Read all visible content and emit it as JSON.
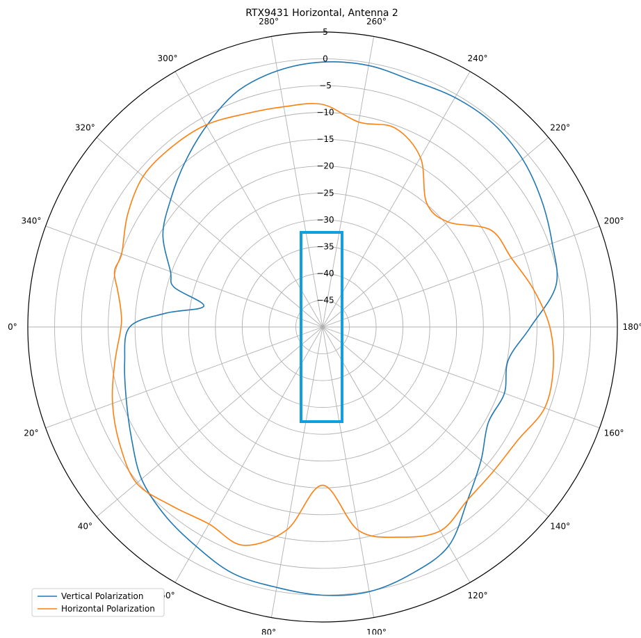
{
  "chart_data": {
    "type": "line",
    "subtype": "polar",
    "title": "RTX9431 Horizontal, Antenna 2",
    "theta_direction": "clockwise",
    "theta_zero": "left",
    "angle_ticks": [
      "0°",
      "20°",
      "40°",
      "60°",
      "80°",
      "100°",
      "120°",
      "140°",
      "160°",
      "180°",
      "200°",
      "220°",
      "240°",
      "260°",
      "280°",
      "300°",
      "320°",
      "340°"
    ],
    "angle_tick_values": [
      0,
      20,
      40,
      60,
      80,
      100,
      120,
      140,
      160,
      180,
      200,
      220,
      240,
      260,
      280,
      300,
      320,
      340
    ],
    "radial_ticks": [
      "5",
      "0",
      "−5",
      "−10",
      "−15",
      "−20",
      "−25",
      "−30",
      "−35",
      "−40",
      "−45"
    ],
    "radial_tick_values": [
      5,
      0,
      -5,
      -10,
      -15,
      -20,
      -25,
      -30,
      -35,
      -40,
      -45
    ],
    "rlim": [
      -50,
      5
    ],
    "grid": true,
    "legend_placement": "lower-left",
    "theta": [
      0,
      10,
      20,
      30,
      40,
      50,
      60,
      70,
      80,
      90,
      100,
      110,
      120,
      130,
      140,
      150,
      160,
      170,
      180,
      190,
      200,
      210,
      220,
      230,
      240,
      250,
      260,
      270,
      280,
      290,
      300,
      310,
      320,
      330,
      340,
      345,
      350,
      355
    ],
    "series": [
      {
        "name": "Vertical Polarization",
        "color": "#1f77b4",
        "r": [
          -14,
          -12.5,
          -11,
          -8.8,
          -5.9,
          -4.2,
          -2.8,
          -1.1,
          -0.7,
          0,
          0.1,
          -1.1,
          -2.9,
          -7.9,
          -11.4,
          -14.3,
          -13.9,
          -14.8,
          -11.2,
          -5.8,
          -4.4,
          -2.8,
          -1.3,
          -0.5,
          -0.6,
          -1.1,
          -0.5,
          -0.6,
          -1.5,
          -3.3,
          -6.7,
          -10,
          -13,
          -15.6,
          -19.8,
          -21.3,
          -27.5,
          -20.6
        ]
      },
      {
        "name": "Horizontal Polarization",
        "color": "#ff7f0e",
        "r": [
          -12.4,
          -10.6,
          -8.3,
          -6.3,
          -4.7,
          -6.4,
          -7.6,
          -6.7,
          -11.6,
          -20.5,
          -11.5,
          -8.3,
          -6.1,
          -7.9,
          -8.3,
          -7.9,
          -5.9,
          -6.3,
          -7.6,
          -10,
          -12.5,
          -13.8,
          -19.5,
          -19.8,
          -13.5,
          -10.5,
          -11.2,
          -8.5,
          -8.3,
          -7.7,
          -6.5,
          -6.2,
          -6.3,
          -8,
          -10.1,
          -9.8,
          -11.2,
          -12.2
        ]
      }
    ]
  },
  "highlight": {
    "color": "#11a0dd"
  }
}
